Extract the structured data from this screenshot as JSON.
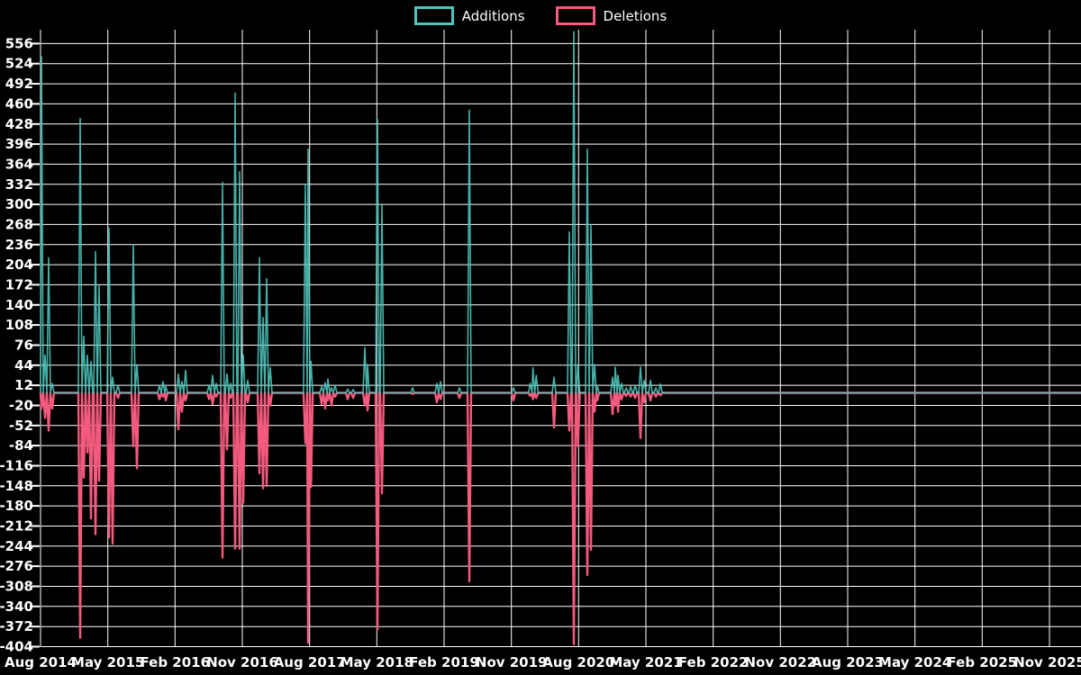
{
  "legend": {
    "items": [
      {
        "label": "Additions",
        "color": "#4ec4bb"
      },
      {
        "label": "Deletions",
        "color": "#f45a7d"
      }
    ]
  },
  "colors": {
    "background": "#000000",
    "grid": "#ffffff",
    "text": "#ffffff",
    "additions": "#4ec4bb",
    "deletions": "#f45a7d"
  },
  "chart_data": {
    "type": "line",
    "title": "",
    "legend_position": "top-center",
    "grid": true,
    "x_axis": {
      "tick_labels": [
        "Aug 2014",
        "May 2015",
        "Feb 2016",
        "Nov 2016",
        "Aug 2017",
        "May 2018",
        "Feb 2019",
        "Nov 2019",
        "Aug 2020",
        "May 2021",
        "Feb 2022",
        "Nov 2022",
        "Aug 2023",
        "May 2024",
        "Feb 2025",
        "Nov 2025"
      ],
      "months_per_tick": 9,
      "domain_units": [
        0,
        15.47
      ],
      "note": "x unit = one 9-month tick interval, 0 = Aug 2014"
    },
    "y_axis": {
      "min": -404,
      "max": 556,
      "tick_step": 32,
      "ticks": [
        556,
        524,
        492,
        460,
        428,
        396,
        364,
        332,
        300,
        268,
        236,
        204,
        172,
        140,
        108,
        76,
        44,
        12,
        -20,
        -52,
        -84,
        -116,
        -148,
        -180,
        -212,
        -244,
        -276,
        -308,
        -340,
        -372,
        -404
      ]
    },
    "series": [
      {
        "name": "Additions",
        "color": "#4ec4bb"
      },
      {
        "name": "Deletions",
        "color": "#f45a7d"
      }
    ],
    "events_format": [
      "x_unit",
      "additions",
      "deletions"
    ],
    "events": [
      [
        0.013,
        535,
        -25
      ],
      [
        0.067,
        60,
        -40
      ],
      [
        0.12,
        215,
        -60
      ],
      [
        0.174,
        15,
        -25
      ],
      [
        0.589,
        437,
        -390
      ],
      [
        0.643,
        90,
        -135
      ],
      [
        0.696,
        60,
        -95
      ],
      [
        0.75,
        50,
        -200
      ],
      [
        0.817,
        225,
        -225
      ],
      [
        0.87,
        170,
        -140
      ],
      [
        1.018,
        262,
        -230
      ],
      [
        1.071,
        25,
        -240
      ],
      [
        1.152,
        12,
        -8
      ],
      [
        1.379,
        236,
        -85
      ],
      [
        1.433,
        45,
        -120
      ],
      [
        1.768,
        12,
        -10
      ],
      [
        1.821,
        18,
        -6
      ],
      [
        1.862,
        10,
        -12
      ],
      [
        2.049,
        30,
        -58
      ],
      [
        2.103,
        18,
        -30
      ],
      [
        2.156,
        36,
        -12
      ],
      [
        2.504,
        12,
        -10
      ],
      [
        2.558,
        28,
        -18
      ],
      [
        2.612,
        15,
        -6
      ],
      [
        2.705,
        335,
        -262
      ],
      [
        2.772,
        30,
        -90
      ],
      [
        2.826,
        15,
        -8
      ],
      [
        2.893,
        477,
        -248
      ],
      [
        2.96,
        352,
        -248
      ],
      [
        3.013,
        60,
        -175
      ],
      [
        3.08,
        20,
        -15
      ],
      [
        3.254,
        215,
        -128
      ],
      [
        3.308,
        120,
        -152
      ],
      [
        3.361,
        182,
        -148
      ],
      [
        3.415,
        40,
        -20
      ],
      [
        3.937,
        332,
        -80
      ],
      [
        3.978,
        388,
        -398
      ],
      [
        4.02,
        50,
        -150
      ],
      [
        4.179,
        10,
        -18
      ],
      [
        4.232,
        16,
        -25
      ],
      [
        4.272,
        22,
        -12
      ],
      [
        4.326,
        8,
        -20
      ],
      [
        4.379,
        12,
        -6
      ],
      [
        4.567,
        6,
        -10
      ],
      [
        4.647,
        5,
        -8
      ],
      [
        4.821,
        72,
        -20
      ],
      [
        4.862,
        45,
        -28
      ],
      [
        5.009,
        435,
        -377
      ],
      [
        5.076,
        300,
        -160
      ],
      [
        5.531,
        8,
        -2
      ],
      [
        5.893,
        15,
        -15
      ],
      [
        5.946,
        18,
        -10
      ],
      [
        6.228,
        8,
        -8
      ],
      [
        6.375,
        450,
        -300
      ],
      [
        7.031,
        8,
        -12
      ],
      [
        7.28,
        15,
        -5
      ],
      [
        7.32,
        40,
        -10
      ],
      [
        7.37,
        28,
        -8
      ],
      [
        7.634,
        25,
        -55
      ],
      [
        7.862,
        256,
        -60
      ],
      [
        7.929,
        575,
        -400
      ],
      [
        7.99,
        45,
        -85
      ],
      [
        8.13,
        388,
        -290
      ],
      [
        8.183,
        268,
        -250
      ],
      [
        8.237,
        45,
        -30
      ],
      [
        8.277,
        10,
        -12
      ],
      [
        8.505,
        25,
        -34
      ],
      [
        8.545,
        41,
        -20
      ],
      [
        8.585,
        28,
        -30
      ],
      [
        8.639,
        15,
        -10
      ],
      [
        8.706,
        8,
        -5
      ],
      [
        8.773,
        10,
        -6
      ],
      [
        8.84,
        12,
        -8
      ],
      [
        8.92,
        41,
        -72
      ],
      [
        8.974,
        20,
        -15
      ],
      [
        9.068,
        20,
        -12
      ],
      [
        9.148,
        8,
        -6
      ],
      [
        9.215,
        14,
        -4
      ]
    ],
    "flat_baseline_after_x_unit": 9.25
  }
}
